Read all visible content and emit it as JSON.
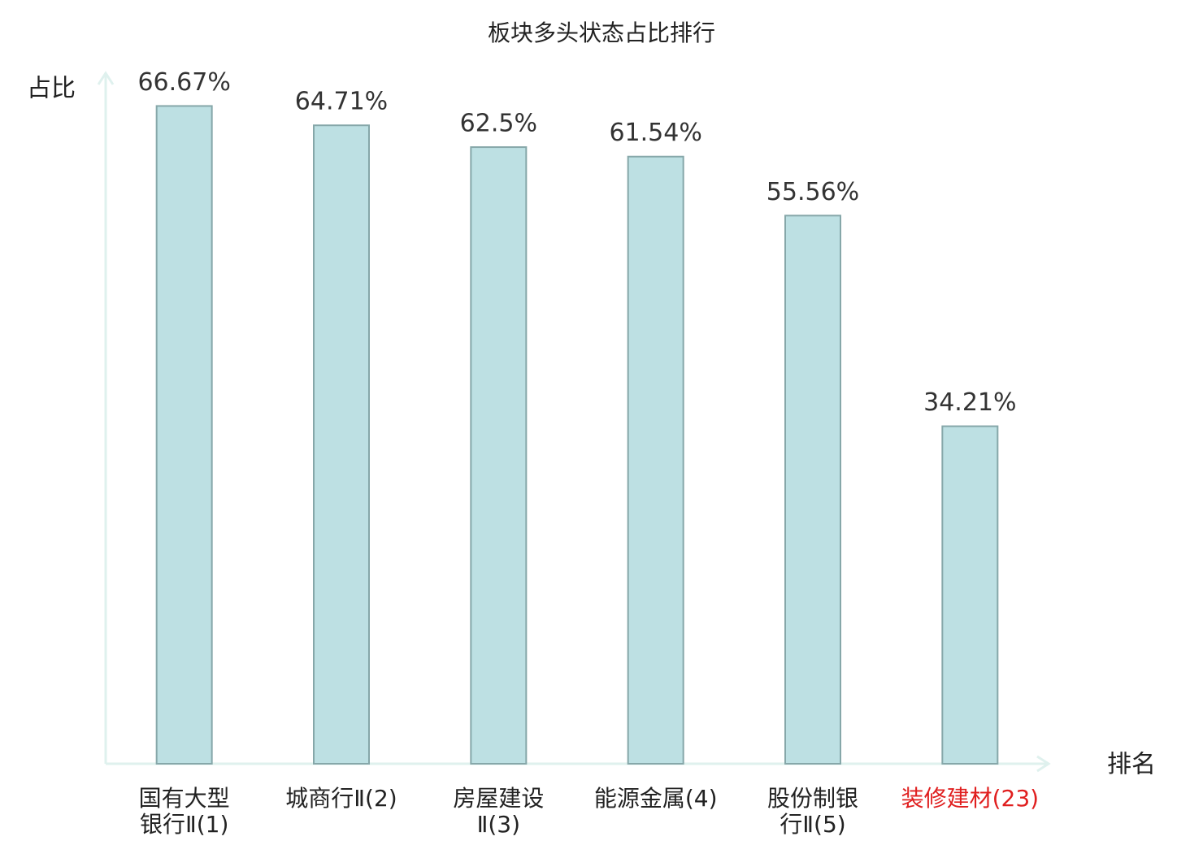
{
  "chart_data": {
    "type": "bar",
    "title": "板块多头状态占比排行",
    "y_label": "占比",
    "x_label": "排名",
    "categories": [
      "国有大型银行Ⅱ(1)",
      "城商行Ⅱ(2)",
      "房屋建设Ⅱ(3)",
      "能源金属(4)",
      "股份制银行Ⅱ(5)",
      "装修建材(23)"
    ],
    "category_colors": [
      "#222222",
      "#222222",
      "#222222",
      "#222222",
      "#222222",
      "#e01f1f"
    ],
    "values": [
      66.67,
      64.71,
      62.5,
      61.54,
      55.56,
      34.21
    ],
    "value_labels": [
      "66.67%",
      "64.71%",
      "62.5%",
      "61.54%",
      "55.56%",
      "34.21%"
    ],
    "color": "#bde0e3",
    "edge_color": "#86a7a9",
    "axis_color": "#dff1ee",
    "ylim": [
      0,
      70
    ]
  }
}
